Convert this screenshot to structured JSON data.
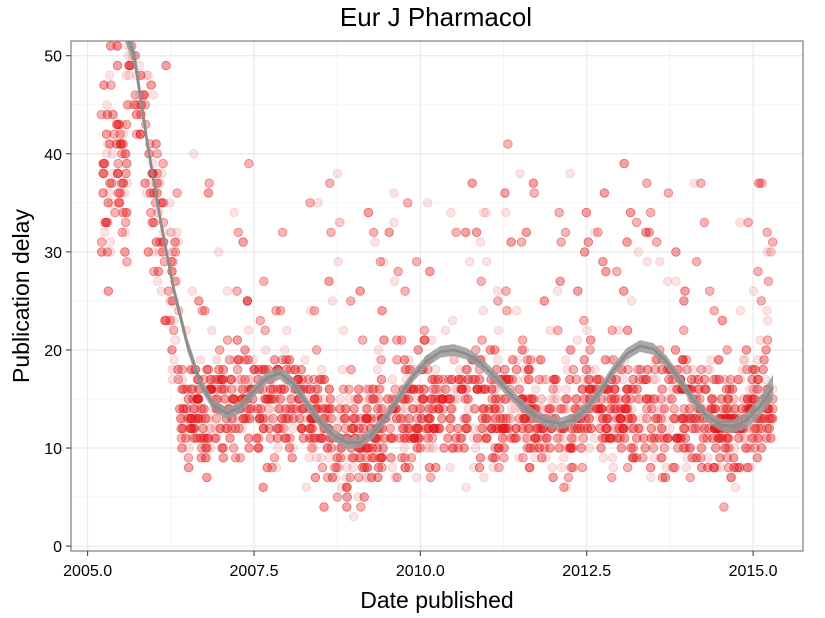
{
  "chart_data": {
    "type": "scatter",
    "title": "Eur J Pharmacol",
    "xlabel": "Date published",
    "ylabel": "Publication delay",
    "xlim": [
      2004.75,
      2015.75
    ],
    "ylim": [
      -0.5,
      51.5
    ],
    "x_ticks": [
      2005.0,
      2007.5,
      2010.0,
      2012.5,
      2015.0
    ],
    "x_tick_labels": [
      "2005.0",
      "2007.5",
      "2010.0",
      "2012.5",
      "2015.0"
    ],
    "y_ticks": [
      0,
      10,
      20,
      30,
      40,
      50
    ],
    "y_tick_labels": [
      "0",
      "10",
      "20",
      "30",
      "40",
      "50"
    ],
    "grid": true,
    "point_color": "#e31a1c",
    "point_opacity": 0.12,
    "smooth_color": "#8c8c8c",
    "smooth_curve": {
      "x": [
        2005.55,
        2005.7,
        2005.9,
        2006.1,
        2006.3,
        2006.5,
        2006.7,
        2006.9,
        2007.1,
        2007.3,
        2007.5,
        2007.7,
        2007.9,
        2008.1,
        2008.3,
        2008.5,
        2008.7,
        2008.9,
        2009.1,
        2009.3,
        2009.5,
        2009.7,
        2009.9,
        2010.1,
        2010.3,
        2010.5,
        2010.7,
        2010.9,
        2011.1,
        2011.3,
        2011.5,
        2011.7,
        2011.9,
        2012.1,
        2012.3,
        2012.5,
        2012.7,
        2012.9,
        2013.1,
        2013.3,
        2013.5,
        2013.7,
        2013.9,
        2014.1,
        2014.3,
        2014.5,
        2014.7,
        2014.9,
        2015.1,
        2015.3
      ],
      "y": [
        53,
        50,
        41,
        33,
        26,
        20.5,
        16.5,
        14.3,
        13.5,
        14.2,
        15.8,
        17.2,
        17.6,
        16.5,
        14.5,
        12.6,
        11.3,
        10.5,
        10.6,
        11.6,
        13.3,
        15.4,
        17.4,
        18.9,
        19.8,
        20.0,
        19.6,
        18.7,
        17.4,
        15.9,
        14.5,
        13.4,
        12.7,
        12.5,
        12.9,
        14.0,
        15.8,
        17.9,
        19.6,
        20.4,
        20.1,
        18.8,
        16.9,
        14.9,
        13.3,
        12.4,
        12.2,
        12.8,
        14.2,
        16.2
      ],
      "band": [
        1.3,
        1.1,
        0.9,
        0.8,
        0.7,
        0.7,
        0.6,
        0.6,
        0.6,
        0.6,
        0.6,
        0.6,
        0.6,
        0.6,
        0.6,
        0.6,
        0.6,
        0.6,
        0.6,
        0.6,
        0.6,
        0.6,
        0.6,
        0.6,
        0.6,
        0.6,
        0.6,
        0.6,
        0.6,
        0.6,
        0.6,
        0.6,
        0.6,
        0.6,
        0.6,
        0.6,
        0.6,
        0.6,
        0.6,
        0.6,
        0.6,
        0.6,
        0.6,
        0.6,
        0.6,
        0.6,
        0.7,
        0.8,
        1.0,
        1.3
      ]
    },
    "point_generation": {
      "x_range": [
        2005.2,
        2015.3
      ],
      "count": 5200,
      "note_x_density": "points are distributed across the date range at ~weekly granularity; delays are integer values that scatter around the smooth trend"
    }
  }
}
